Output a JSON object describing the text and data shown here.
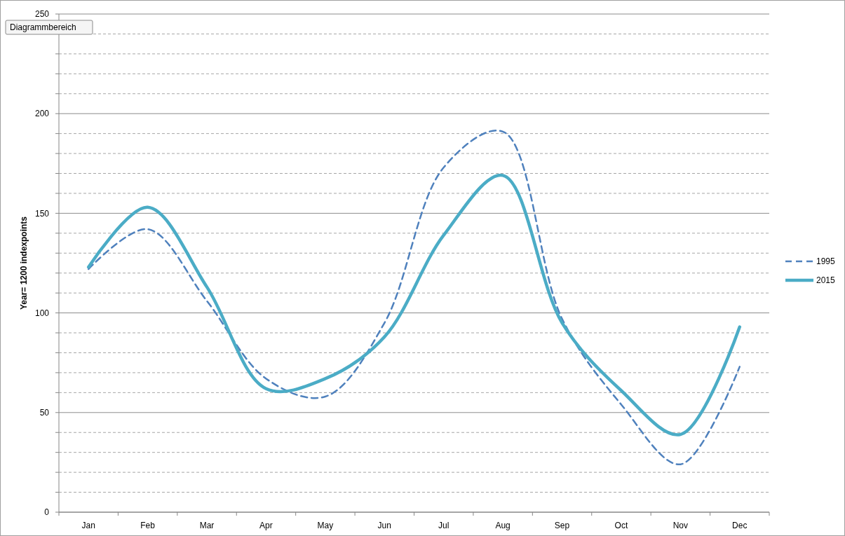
{
  "chart_data": {
    "type": "line",
    "ylabel": "Year= 1200 indexpoints",
    "annotations": [
      "Diagrammbereich"
    ],
    "categories": [
      "Jan",
      "Feb",
      "Mar",
      "Apr",
      "May",
      "Jun",
      "Jul",
      "Aug",
      "Sep",
      "Oct",
      "Nov",
      "Dec"
    ],
    "series": [
      {
        "name": "1995",
        "color": "#4f81bd",
        "line_style": "dashed",
        "values": [
          122,
          142,
          106,
          67,
          58,
          95,
          173,
          191,
          97,
          54,
          24,
          73
        ]
      },
      {
        "name": "2015",
        "color": "#4bacc6",
        "line_style": "solid",
        "values": [
          123,
          153,
          113,
          62,
          67,
          88,
          139,
          169,
          95,
          61,
          39,
          93
        ]
      }
    ],
    "ylim": [
      0,
      250
    ],
    "yticks": [
      0,
      {
        "value": 10,
        "label": null
      },
      {
        "value": 20,
        "label": null
      },
      {
        "value": 30,
        "label": null
      },
      {
        "value": 40,
        "label": null
      },
      50,
      {
        "value": 60,
        "label": null
      },
      {
        "value": 70,
        "label": null
      },
      {
        "value": 80,
        "label": null
      },
      {
        "value": 90,
        "label": null
      },
      100,
      {
        "value": 110,
        "label": null
      },
      {
        "value": 120,
        "label": null
      },
      {
        "value": 130,
        "label": null
      },
      {
        "value": 140,
        "label": null
      },
      150,
      {
        "value": 160,
        "label": null
      },
      {
        "value": 170,
        "label": null
      },
      {
        "value": 180,
        "label": null
      },
      {
        "value": 190,
        "label": null
      },
      200,
      {
        "value": 210,
        "label": null
      },
      {
        "value": 220,
        "label": null
      },
      {
        "value": 230,
        "label": null
      },
      {
        "value": 240,
        "label": null
      },
      250
    ],
    "grid": "y",
    "legend": "right",
    "marker": "none"
  }
}
